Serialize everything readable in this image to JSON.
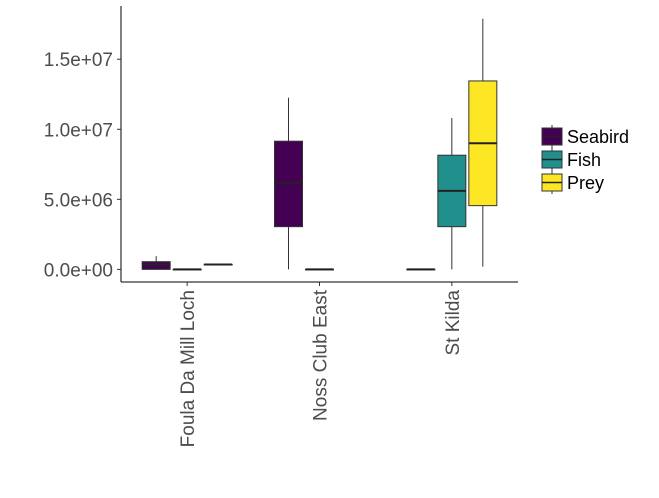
{
  "chart_data": {
    "type": "box",
    "categories": [
      "Foula Da Mill Loch",
      "Noss Club East",
      "St Kilda"
    ],
    "y_ticks": [
      {
        "value": 0,
        "label": "0.0e+00"
      },
      {
        "value": 5000000,
        "label": "5.0e+06"
      },
      {
        "value": 10000000,
        "label": "1.0e+07"
      },
      {
        "value": 15000000,
        "label": "1.5e+07"
      }
    ],
    "ylim": [
      -900000,
      18800000
    ],
    "xlabel": "",
    "ylabel": "",
    "grid": false,
    "legend_position": "right",
    "series": [
      {
        "name": "Seabird",
        "color": "#440154",
        "boxes": [
          {
            "category": "Foula Da Mill Loch",
            "min": 0,
            "q1": 0,
            "median": 350000,
            "q3": 550000,
            "max": 950000
          },
          {
            "category": "Noss Club East",
            "min": 0,
            "q1": 3050000,
            "median": 6150000,
            "q3": 9150000,
            "max": 12250000
          },
          null
        ]
      },
      {
        "name": "Fish",
        "color": "#21908C",
        "boxes": [
          {
            "category": "Foula Da Mill Loch",
            "min": 0,
            "q1": 0,
            "median": 0,
            "q3": 0,
            "max": 0
          },
          {
            "category": "Noss Club East",
            "min": 0,
            "q1": 0,
            "median": 0,
            "q3": 0,
            "max": 0
          },
          {
            "category": "St Kilda",
            "min": 0,
            "q1": 3050000,
            "median": 5600000,
            "q3": 8150000,
            "max": 10800000
          }
        ]
      },
      {
        "name": "Prey",
        "color": "#FDE725",
        "boxes": [
          {
            "category": "Foula Da Mill Loch",
            "min": 350000,
            "q1": 350000,
            "median": 350000,
            "q3": 350000,
            "max": 350000
          },
          null,
          {
            "category": "St Kilda",
            "min": 200000,
            "q1": 4550000,
            "median": 9000000,
            "q3": 13450000,
            "max": 17900000
          }
        ]
      }
    ],
    "extra_boxes": [
      {
        "category": "St Kilda",
        "offset": -1,
        "name": "Seabird-zero",
        "color": "#440154",
        "min": 0,
        "q1": 0,
        "median": 0,
        "q3": 0,
        "max": 0
      }
    ]
  }
}
